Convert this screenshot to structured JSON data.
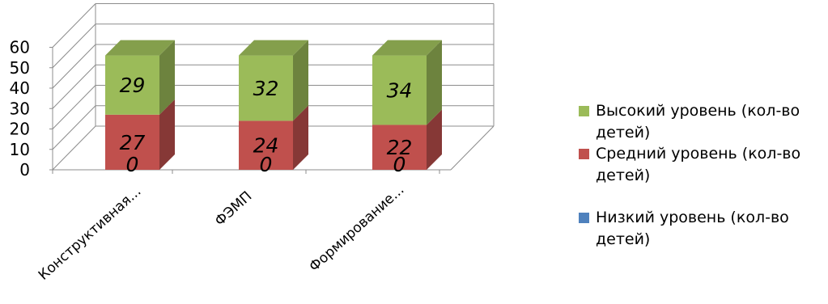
{
  "chart_data": {
    "type": "bar",
    "stacked": true,
    "style": "3d",
    "categories": [
      "Конструктивная...",
      "ФЭМП",
      "Формирование..."
    ],
    "series": [
      {
        "name": "Низкий уровень (кол-во детей)",
        "values": [
          0,
          0,
          0
        ],
        "color": "#4f81bd"
      },
      {
        "name": "Средний уровень (кол-во детей)",
        "values": [
          27,
          24,
          22
        ],
        "color": "#c0504d"
      },
      {
        "name": "Высокий уровень (кол-во детей)",
        "values": [
          29,
          32,
          34
        ],
        "color": "#9bbb59"
      }
    ],
    "ylim": [
      0,
      60
    ],
    "yticks": [
      0,
      10,
      20,
      30,
      40,
      50,
      60
    ],
    "grid": true,
    "legend_position": "right",
    "legend_order": [
      "Высокий уровень (кол-во детей)",
      "Средний уровень (кол-во детей)",
      "Низкий уровень (кол-во детей)"
    ]
  }
}
